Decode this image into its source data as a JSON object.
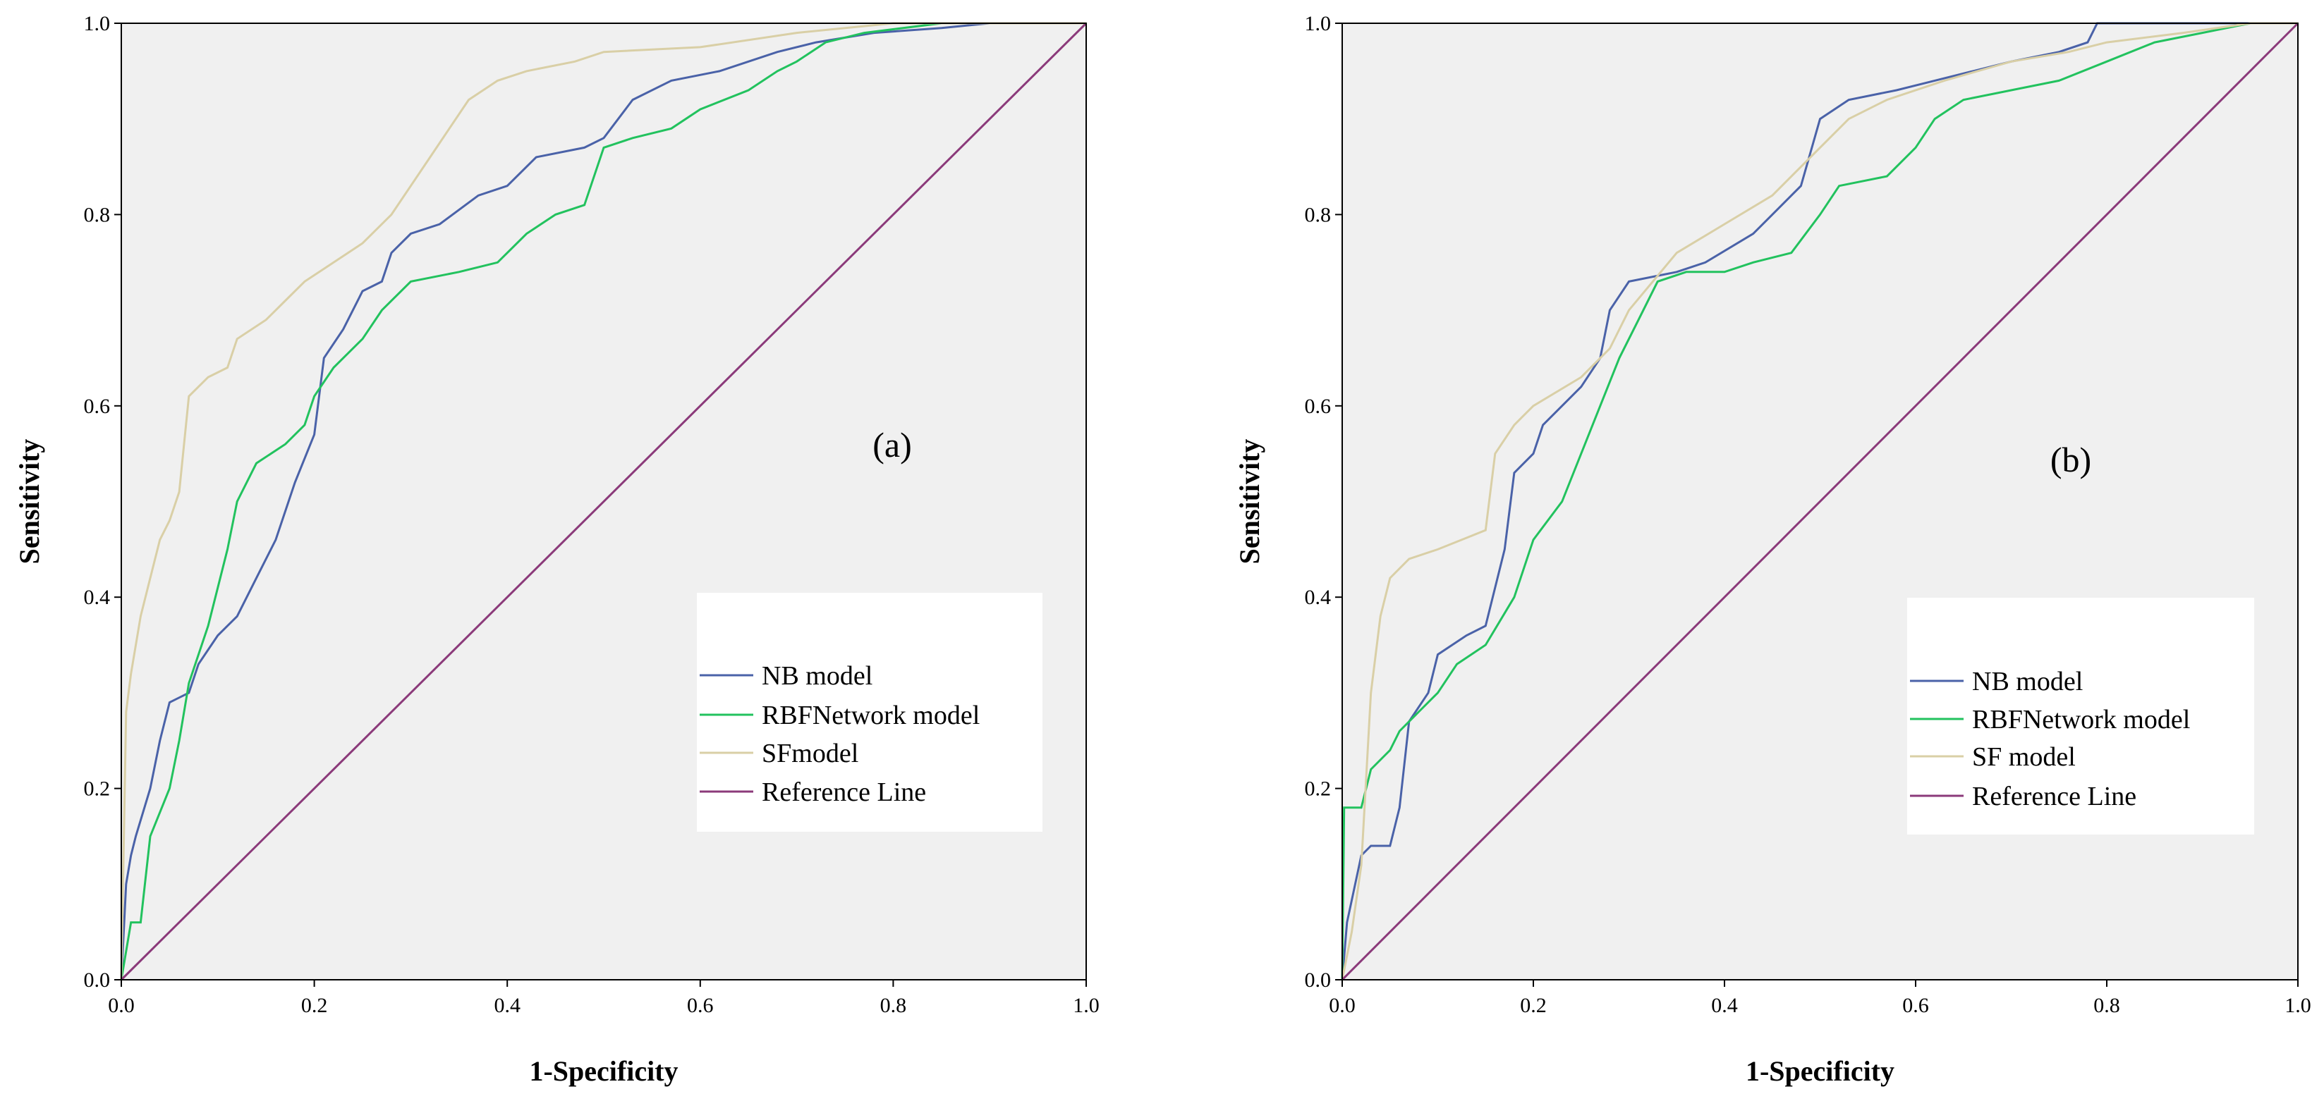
{
  "colors": {
    "plot_background": "#f0f0f0",
    "axis": "#000000",
    "NB model": "#4a62a8",
    "RBFNetwork model": "#22c25e",
    "SF model": "#d9cfa6",
    "Reference Line": "#8b3a7a"
  },
  "chart_data": [
    {
      "type": "line",
      "panel_label": "(a)",
      "xlabel": "1-Specificity",
      "ylabel": "Sensitivity",
      "xlim": [
        0,
        1
      ],
      "ylim": [
        0,
        1
      ],
      "xticks": [
        "0.0",
        "0.2",
        "0.4",
        "0.6",
        "0.8",
        "1.0"
      ],
      "yticks": [
        "0.0",
        "0.2",
        "0.4",
        "0.6",
        "0.8",
        "1.0"
      ],
      "grid": false,
      "legend_position": "bottom-right",
      "series": [
        {
          "name": "NB model",
          "color_key": "NB model",
          "points": [
            [
              0,
              0
            ],
            [
              0.005,
              0.1
            ],
            [
              0.01,
              0.13
            ],
            [
              0.015,
              0.15
            ],
            [
              0.03,
              0.2
            ],
            [
              0.04,
              0.25
            ],
            [
              0.05,
              0.29
            ],
            [
              0.07,
              0.3
            ],
            [
              0.08,
              0.33
            ],
            [
              0.1,
              0.36
            ],
            [
              0.12,
              0.38
            ],
            [
              0.14,
              0.42
            ],
            [
              0.16,
              0.46
            ],
            [
              0.18,
              0.52
            ],
            [
              0.2,
              0.57
            ],
            [
              0.21,
              0.65
            ],
            [
              0.23,
              0.68
            ],
            [
              0.25,
              0.72
            ],
            [
              0.27,
              0.73
            ],
            [
              0.28,
              0.76
            ],
            [
              0.3,
              0.78
            ],
            [
              0.33,
              0.79
            ],
            [
              0.37,
              0.82
            ],
            [
              0.4,
              0.83
            ],
            [
              0.43,
              0.86
            ],
            [
              0.48,
              0.87
            ],
            [
              0.5,
              0.88
            ],
            [
              0.53,
              0.92
            ],
            [
              0.57,
              0.94
            ],
            [
              0.62,
              0.95
            ],
            [
              0.65,
              0.96
            ],
            [
              0.68,
              0.97
            ],
            [
              0.72,
              0.98
            ],
            [
              0.78,
              0.99
            ],
            [
              0.85,
              0.995
            ],
            [
              0.9,
              1
            ],
            [
              1,
              1
            ]
          ]
        },
        {
          "name": "RBFNetwork model",
          "color_key": "RBFNetwork model",
          "points": [
            [
              0,
              0
            ],
            [
              0.01,
              0.06
            ],
            [
              0.02,
              0.06
            ],
            [
              0.03,
              0.15
            ],
            [
              0.05,
              0.2
            ],
            [
              0.06,
              0.25
            ],
            [
              0.07,
              0.31
            ],
            [
              0.09,
              0.37
            ],
            [
              0.11,
              0.45
            ],
            [
              0.12,
              0.5
            ],
            [
              0.14,
              0.54
            ],
            [
              0.17,
              0.56
            ],
            [
              0.19,
              0.58
            ],
            [
              0.2,
              0.61
            ],
            [
              0.22,
              0.64
            ],
            [
              0.25,
              0.67
            ],
            [
              0.27,
              0.7
            ],
            [
              0.3,
              0.73
            ],
            [
              0.35,
              0.74
            ],
            [
              0.39,
              0.75
            ],
            [
              0.42,
              0.78
            ],
            [
              0.45,
              0.8
            ],
            [
              0.48,
              0.81
            ],
            [
              0.5,
              0.87
            ],
            [
              0.53,
              0.88
            ],
            [
              0.57,
              0.89
            ],
            [
              0.6,
              0.91
            ],
            [
              0.65,
              0.93
            ],
            [
              0.68,
              0.95
            ],
            [
              0.7,
              0.96
            ],
            [
              0.73,
              0.98
            ],
            [
              0.77,
              0.99
            ],
            [
              0.85,
              1
            ],
            [
              1,
              1
            ]
          ]
        },
        {
          "name": "SFmodel",
          "color_key": "SF model",
          "points": [
            [
              0,
              0
            ],
            [
              0.005,
              0.28
            ],
            [
              0.01,
              0.32
            ],
            [
              0.02,
              0.38
            ],
            [
              0.03,
              0.42
            ],
            [
              0.04,
              0.46
            ],
            [
              0.05,
              0.48
            ],
            [
              0.06,
              0.51
            ],
            [
              0.07,
              0.61
            ],
            [
              0.09,
              0.63
            ],
            [
              0.11,
              0.64
            ],
            [
              0.12,
              0.67
            ],
            [
              0.15,
              0.69
            ],
            [
              0.17,
              0.71
            ],
            [
              0.19,
              0.73
            ],
            [
              0.22,
              0.75
            ],
            [
              0.25,
              0.77
            ],
            [
              0.28,
              0.8
            ],
            [
              0.3,
              0.83
            ],
            [
              0.32,
              0.86
            ],
            [
              0.34,
              0.89
            ],
            [
              0.36,
              0.92
            ],
            [
              0.39,
              0.94
            ],
            [
              0.42,
              0.95
            ],
            [
              0.47,
              0.96
            ],
            [
              0.5,
              0.97
            ],
            [
              0.6,
              0.975
            ],
            [
              0.7,
              0.99
            ],
            [
              0.8,
              1
            ],
            [
              1,
              1
            ]
          ]
        },
        {
          "name": "Reference Line",
          "color_key": "Reference Line",
          "points": [
            [
              0,
              0
            ],
            [
              1,
              1
            ]
          ]
        }
      ]
    },
    {
      "type": "line",
      "panel_label": "(b)",
      "xlabel": "1-Specificity",
      "ylabel": "Sensitivity",
      "xlim": [
        0,
        1
      ],
      "ylim": [
        0,
        1
      ],
      "xticks": [
        "0.0",
        "0.2",
        "0.4",
        "0.6",
        "0.8",
        "1.0"
      ],
      "yticks": [
        "0.0",
        "0.2",
        "0.4",
        "0.6",
        "0.8",
        "1.0"
      ],
      "grid": false,
      "legend_position": "bottom-right",
      "series": [
        {
          "name": "NB model",
          "color_key": "NB model",
          "points": [
            [
              0,
              0
            ],
            [
              0.005,
              0.06
            ],
            [
              0.02,
              0.13
            ],
            [
              0.03,
              0.14
            ],
            [
              0.05,
              0.14
            ],
            [
              0.06,
              0.18
            ],
            [
              0.07,
              0.27
            ],
            [
              0.09,
              0.3
            ],
            [
              0.1,
              0.34
            ],
            [
              0.13,
              0.36
            ],
            [
              0.15,
              0.37
            ],
            [
              0.17,
              0.45
            ],
            [
              0.18,
              0.53
            ],
            [
              0.2,
              0.55
            ],
            [
              0.21,
              0.58
            ],
            [
              0.23,
              0.6
            ],
            [
              0.25,
              0.62
            ],
            [
              0.27,
              0.65
            ],
            [
              0.28,
              0.7
            ],
            [
              0.3,
              0.73
            ],
            [
              0.35,
              0.74
            ],
            [
              0.38,
              0.75
            ],
            [
              0.43,
              0.78
            ],
            [
              0.45,
              0.8
            ],
            [
              0.48,
              0.83
            ],
            [
              0.5,
              0.9
            ],
            [
              0.53,
              0.92
            ],
            [
              0.58,
              0.93
            ],
            [
              0.62,
              0.94
            ],
            [
              0.66,
              0.95
            ],
            [
              0.7,
              0.96
            ],
            [
              0.75,
              0.97
            ],
            [
              0.78,
              0.98
            ],
            [
              0.79,
              1
            ],
            [
              1,
              1
            ]
          ]
        },
        {
          "name": "RBFNetwork model",
          "color_key": "RBFNetwork model",
          "points": [
            [
              0,
              0
            ],
            [
              0.002,
              0.18
            ],
            [
              0.02,
              0.18
            ],
            [
              0.03,
              0.22
            ],
            [
              0.05,
              0.24
            ],
            [
              0.06,
              0.26
            ],
            [
              0.08,
              0.28
            ],
            [
              0.1,
              0.3
            ],
            [
              0.12,
              0.33
            ],
            [
              0.15,
              0.35
            ],
            [
              0.18,
              0.4
            ],
            [
              0.2,
              0.46
            ],
            [
              0.23,
              0.5
            ],
            [
              0.25,
              0.55
            ],
            [
              0.27,
              0.6
            ],
            [
              0.29,
              0.65
            ],
            [
              0.31,
              0.69
            ],
            [
              0.33,
              0.73
            ],
            [
              0.36,
              0.74
            ],
            [
              0.4,
              0.74
            ],
            [
              0.43,
              0.75
            ],
            [
              0.47,
              0.76
            ],
            [
              0.5,
              0.8
            ],
            [
              0.52,
              0.83
            ],
            [
              0.57,
              0.84
            ],
            [
              0.6,
              0.87
            ],
            [
              0.62,
              0.9
            ],
            [
              0.65,
              0.92
            ],
            [
              0.7,
              0.93
            ],
            [
              0.75,
              0.94
            ],
            [
              0.8,
              0.96
            ],
            [
              0.85,
              0.98
            ],
            [
              0.9,
              0.99
            ],
            [
              0.95,
              1
            ],
            [
              1,
              1
            ]
          ]
        },
        {
          "name": "SF model",
          "color_key": "SF model",
          "points": [
            [
              0,
              0
            ],
            [
              0.01,
              0.05
            ],
            [
              0.02,
              0.12
            ],
            [
              0.03,
              0.3
            ],
            [
              0.04,
              0.38
            ],
            [
              0.05,
              0.42
            ],
            [
              0.07,
              0.44
            ],
            [
              0.1,
              0.45
            ],
            [
              0.15,
              0.47
            ],
            [
              0.16,
              0.55
            ],
            [
              0.18,
              0.58
            ],
            [
              0.2,
              0.6
            ],
            [
              0.25,
              0.63
            ],
            [
              0.28,
              0.66
            ],
            [
              0.3,
              0.7
            ],
            [
              0.35,
              0.76
            ],
            [
              0.4,
              0.79
            ],
            [
              0.45,
              0.82
            ],
            [
              0.5,
              0.87
            ],
            [
              0.53,
              0.9
            ],
            [
              0.57,
              0.92
            ],
            [
              0.63,
              0.94
            ],
            [
              0.7,
              0.96
            ],
            [
              0.76,
              0.97
            ],
            [
              0.8,
              0.98
            ],
            [
              0.88,
              0.99
            ],
            [
              0.95,
              1
            ],
            [
              1,
              1
            ]
          ]
        },
        {
          "name": "Reference Line",
          "color_key": "Reference Line",
          "points": [
            [
              0,
              0
            ],
            [
              1,
              1
            ]
          ]
        }
      ]
    }
  ]
}
